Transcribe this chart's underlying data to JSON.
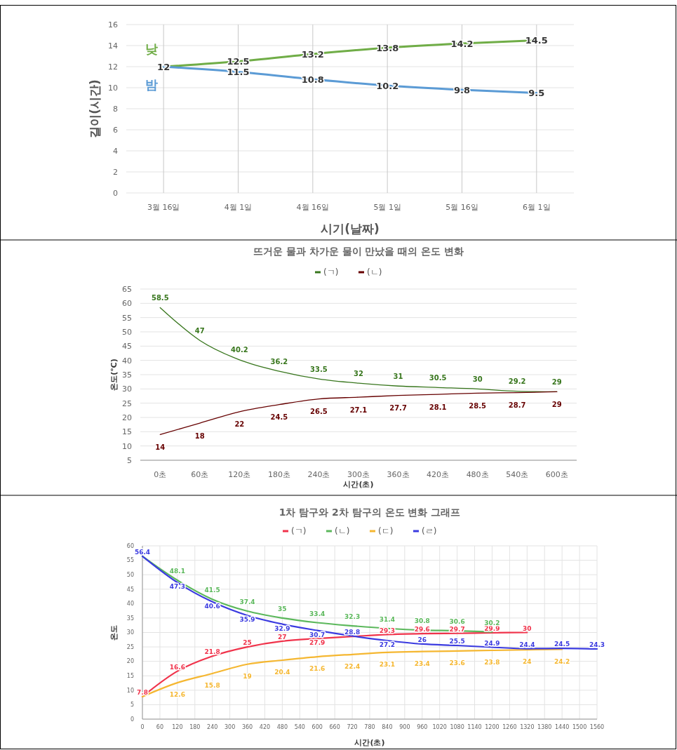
{
  "chart_data": [
    {
      "type": "line",
      "xlabel": "시기(날짜)",
      "ylabel": "길이(시간)",
      "categories": [
        "3월 16일",
        "4월 1일",
        "4월 16일",
        "5월 1일",
        "5월 16일",
        "6월 1일"
      ],
      "series": [
        {
          "name": "낮",
          "color": "#70ad47",
          "values": [
            12,
            12.5,
            13.2,
            13.8,
            14.2,
            14.5
          ]
        },
        {
          "name": "밤",
          "color": "#5b9bd5",
          "values": [
            12,
            11.5,
            10.8,
            10.2,
            9.8,
            9.5
          ],
          "value_labels": [
            null,
            "11.5",
            "10.8",
            "10.2",
            "9.8",
            "9.5"
          ]
        }
      ],
      "ylim": [
        0,
        16
      ],
      "yticks": [
        0,
        2,
        4,
        6,
        8,
        10,
        12,
        14,
        16
      ],
      "grid": true,
      "data_labels": true,
      "marker": "none",
      "legend": false
    },
    {
      "type": "line",
      "title": "뜨거운 물과 차가운 물이 만났을 때의 온도 변화",
      "xlabel": "시간(초)",
      "ylabel": "온도(℃)",
      "categories": [
        "0초",
        "60초",
        "120초",
        "180초",
        "240초",
        "300초",
        "360초",
        "420초",
        "480초",
        "540초",
        "600초"
      ],
      "series": [
        {
          "name": "(ㄱ)",
          "color": "#38761d",
          "values": [
            58.5,
            47,
            40.2,
            36.2,
            33.5,
            32,
            31,
            30.5,
            30,
            29.2,
            29
          ]
        },
        {
          "name": "(ㄴ)",
          "color": "#660000",
          "values": [
            14,
            18,
            22,
            24.5,
            26.5,
            27.1,
            27.7,
            28.1,
            28.5,
            28.7,
            29
          ]
        }
      ],
      "ylim": [
        5,
        65
      ],
      "yticks": [
        5,
        10,
        15,
        20,
        25,
        30,
        35,
        40,
        45,
        50,
        55,
        60,
        65
      ],
      "grid": "y",
      "data_labels": true,
      "marker": "none",
      "legend": "top"
    },
    {
      "type": "line",
      "title": "1차 탐구와 2차 탐구의 온도 변화 그래프",
      "xlabel": "시간(초)",
      "ylabel": "온도",
      "series": [
        {
          "name": "(ㄱ)",
          "color": "#f0334b",
          "x": [
            0,
            120,
            240,
            360,
            480,
            600,
            720,
            840,
            960,
            1080,
            1200,
            1320
          ],
          "values": [
            7.8,
            16.6,
            21.8,
            25,
            27,
            27.9,
            28.6,
            29.3,
            29.6,
            29.7,
            29.9,
            30
          ],
          "value_labels": [
            "7.8",
            "16.6",
            "21.8",
            "25",
            "27",
            "27.9",
            null,
            "29.3",
            "29.6",
            "29.7",
            "29.9",
            "30"
          ]
        },
        {
          "name": "(ㄴ)",
          "color": "#5cb85c",
          "x": [
            0,
            120,
            240,
            360,
            480,
            600,
            720,
            840,
            960,
            1080,
            1200
          ],
          "values": [
            56.4,
            48.1,
            41.5,
            37.4,
            35,
            33.4,
            32.3,
            31.4,
            30.8,
            30.6,
            30.2
          ],
          "value_labels": [
            null,
            "48.1",
            "41.5",
            "37.4",
            "35",
            "33.4",
            "32.3",
            "31.4",
            "30.8",
            "30.6",
            "30.2"
          ]
        },
        {
          "name": "(ㄷ)",
          "color": "#f5b731",
          "x": [
            0,
            120,
            240,
            360,
            480,
            600,
            720,
            840,
            960,
            1080,
            1200,
            1320,
            1440
          ],
          "values": [
            7.8,
            12.6,
            15.8,
            19,
            20.4,
            21.6,
            22.4,
            23.1,
            23.4,
            23.6,
            23.8,
            24,
            24.2
          ],
          "value_labels": [
            null,
            "12.6",
            "15.8",
            "19",
            "20.4",
            "21.6",
            "22.4",
            "23.1",
            "23.4",
            "23.6",
            "23.8",
            "24",
            "24.2"
          ]
        },
        {
          "name": "(ㄹ)",
          "color": "#3b3be0",
          "x": [
            0,
            120,
            240,
            360,
            480,
            600,
            720,
            840,
            960,
            1080,
            1200,
            1320,
            1440,
            1560
          ],
          "values": [
            56.4,
            47.3,
            40.6,
            35.9,
            32.9,
            30.7,
            28.8,
            27.2,
            26,
            25.5,
            24.9,
            24.4,
            24.5,
            24.3
          ]
        }
      ],
      "xlim": [
        0,
        1560
      ],
      "xticks": [
        0,
        60,
        120,
        180,
        240,
        300,
        360,
        420,
        480,
        540,
        600,
        660,
        720,
        780,
        840,
        900,
        960,
        1020,
        1080,
        1140,
        1200,
        1260,
        1320,
        1380,
        1440,
        1500,
        1560
      ],
      "ylim": [
        0,
        60
      ],
      "yticks": [
        0,
        5,
        10,
        15,
        20,
        25,
        30,
        35,
        40,
        45,
        50,
        55,
        60
      ],
      "grid": true,
      "data_labels": true,
      "marker": "none",
      "legend": "top"
    }
  ]
}
